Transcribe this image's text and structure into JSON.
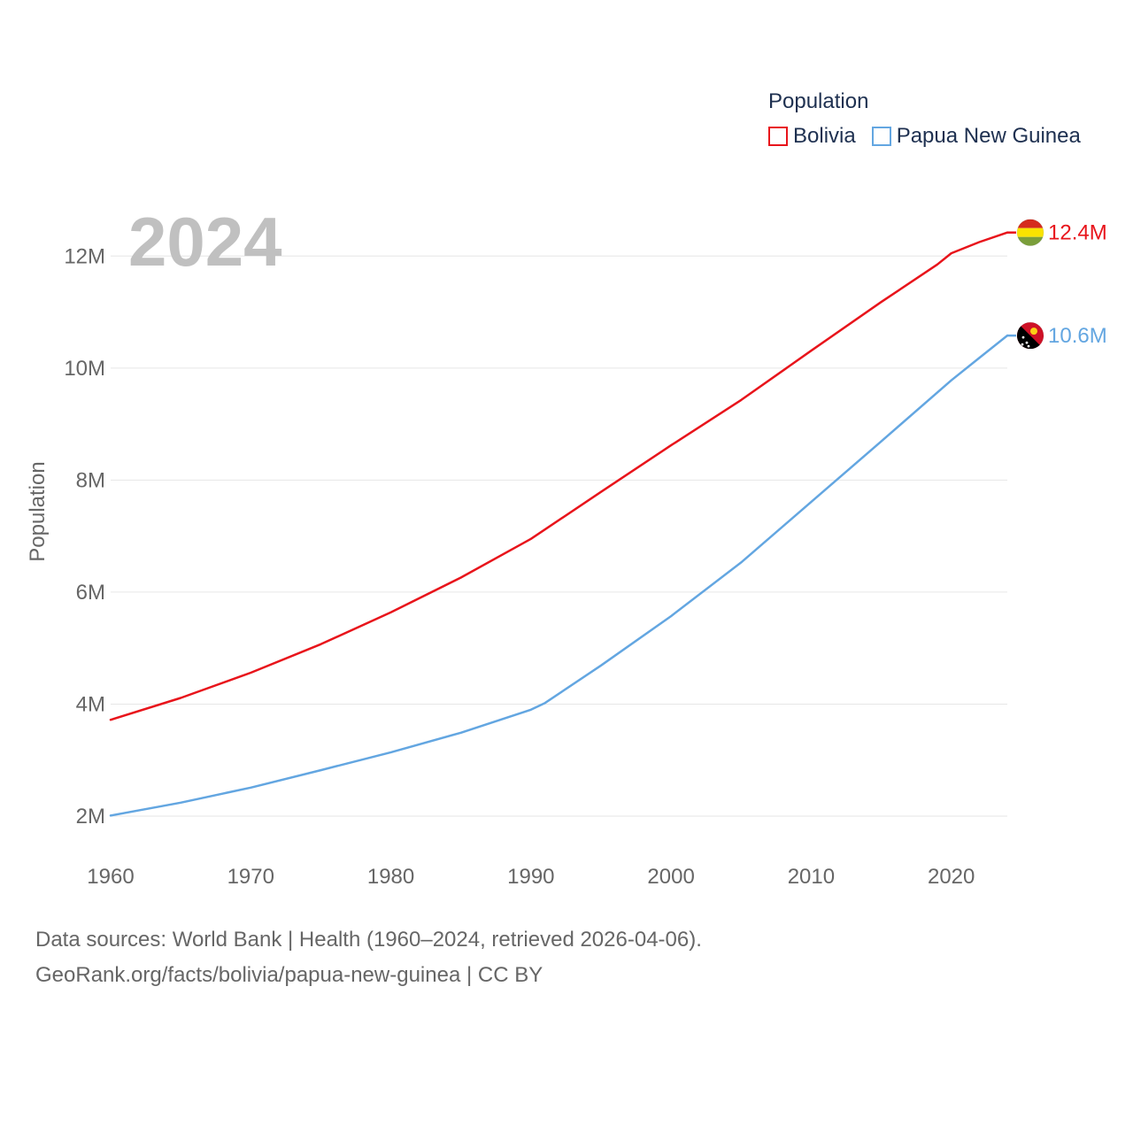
{
  "chart_data": {
    "type": "line",
    "year_watermark": "2024",
    "ylabel": "Population",
    "xlabel": "",
    "xlim": [
      1960,
      2024
    ],
    "ylim": [
      1400000,
      13000000
    ],
    "x_ticks": [
      {
        "value": 1960,
        "label": "1960"
      },
      {
        "value": 1970,
        "label": "1970"
      },
      {
        "value": 1980,
        "label": "1980"
      },
      {
        "value": 1990,
        "label": "1990"
      },
      {
        "value": 2000,
        "label": "2000"
      },
      {
        "value": 2010,
        "label": "2010"
      },
      {
        "value": 2020,
        "label": "2020"
      }
    ],
    "y_ticks": [
      {
        "value": 2000000,
        "label": "2M"
      },
      {
        "value": 4000000,
        "label": "4M"
      },
      {
        "value": 6000000,
        "label": "6M"
      },
      {
        "value": 8000000,
        "label": "8M"
      },
      {
        "value": 10000000,
        "label": "10M"
      },
      {
        "value": 12000000,
        "label": "12M"
      }
    ],
    "legend": {
      "title": "Population",
      "placement": "top-right"
    },
    "series": [
      {
        "name": "Bolivia",
        "color": "#e8141b",
        "end_label": "12.4M",
        "flag_icon": "bolivia-flag-icon",
        "points": [
          [
            1960,
            3720000
          ],
          [
            1965,
            4110000
          ],
          [
            1970,
            4560000
          ],
          [
            1975,
            5070000
          ],
          [
            1980,
            5640000
          ],
          [
            1985,
            6260000
          ],
          [
            1990,
            6950000
          ],
          [
            1995,
            7790000
          ],
          [
            2000,
            8620000
          ],
          [
            2005,
            9430000
          ],
          [
            2010,
            10310000
          ],
          [
            2015,
            11180000
          ],
          [
            2019,
            11850000
          ],
          [
            2020,
            12050000
          ],
          [
            2022,
            12250000
          ],
          [
            2024,
            12420000
          ]
        ]
      },
      {
        "name": "Papua New Guinea",
        "color": "#63a6e1",
        "end_label": "10.6M",
        "flag_icon": "papua-new-guinea-flag-icon",
        "points": [
          [
            1960,
            2010000
          ],
          [
            1965,
            2240000
          ],
          [
            1970,
            2510000
          ],
          [
            1975,
            2820000
          ],
          [
            1980,
            3140000
          ],
          [
            1985,
            3490000
          ],
          [
            1990,
            3900000
          ],
          [
            1991,
            4020000
          ],
          [
            1995,
            4690000
          ],
          [
            2000,
            5570000
          ],
          [
            2005,
            6530000
          ],
          [
            2010,
            7610000
          ],
          [
            2015,
            8690000
          ],
          [
            2020,
            9780000
          ],
          [
            2022,
            10180000
          ],
          [
            2024,
            10580000
          ]
        ]
      }
    ]
  },
  "footer": {
    "sources": "Data sources: World Bank | Health (1960–2024, retrieved 2026-04-06).",
    "credit": "GeoRank.org/facts/bolivia/papua-new-guinea | CC BY"
  }
}
